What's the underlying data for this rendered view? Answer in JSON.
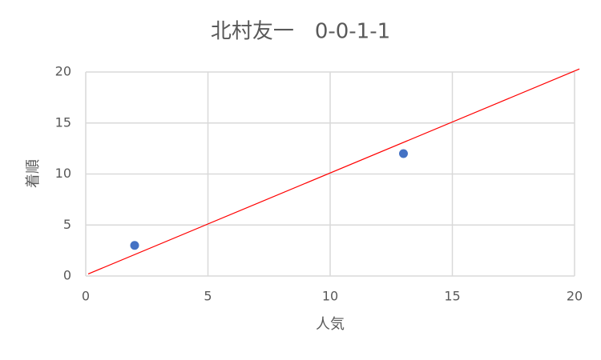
{
  "chart_data": {
    "type": "scatter",
    "title": "北村友一　0-0-1-1",
    "x_label": "人気",
    "y_label": "着順",
    "series": [
      {
        "color": "#4472c4",
        "x": [
          2,
          13
        ],
        "values": [
          3,
          12
        ]
      },
      {
        "type": "line",
        "color": "#ff0000",
        "x": [
          0.1,
          20.2
        ],
        "values": [
          0.2,
          20.3
        ]
      }
    ],
    "xlim": [
      0,
      20
    ],
    "xticks": [
      0,
      5,
      10,
      15,
      20
    ],
    "ylim": [
      0,
      20
    ],
    "yticks": [
      0,
      5,
      10,
      15,
      20
    ],
    "grid": true
  }
}
